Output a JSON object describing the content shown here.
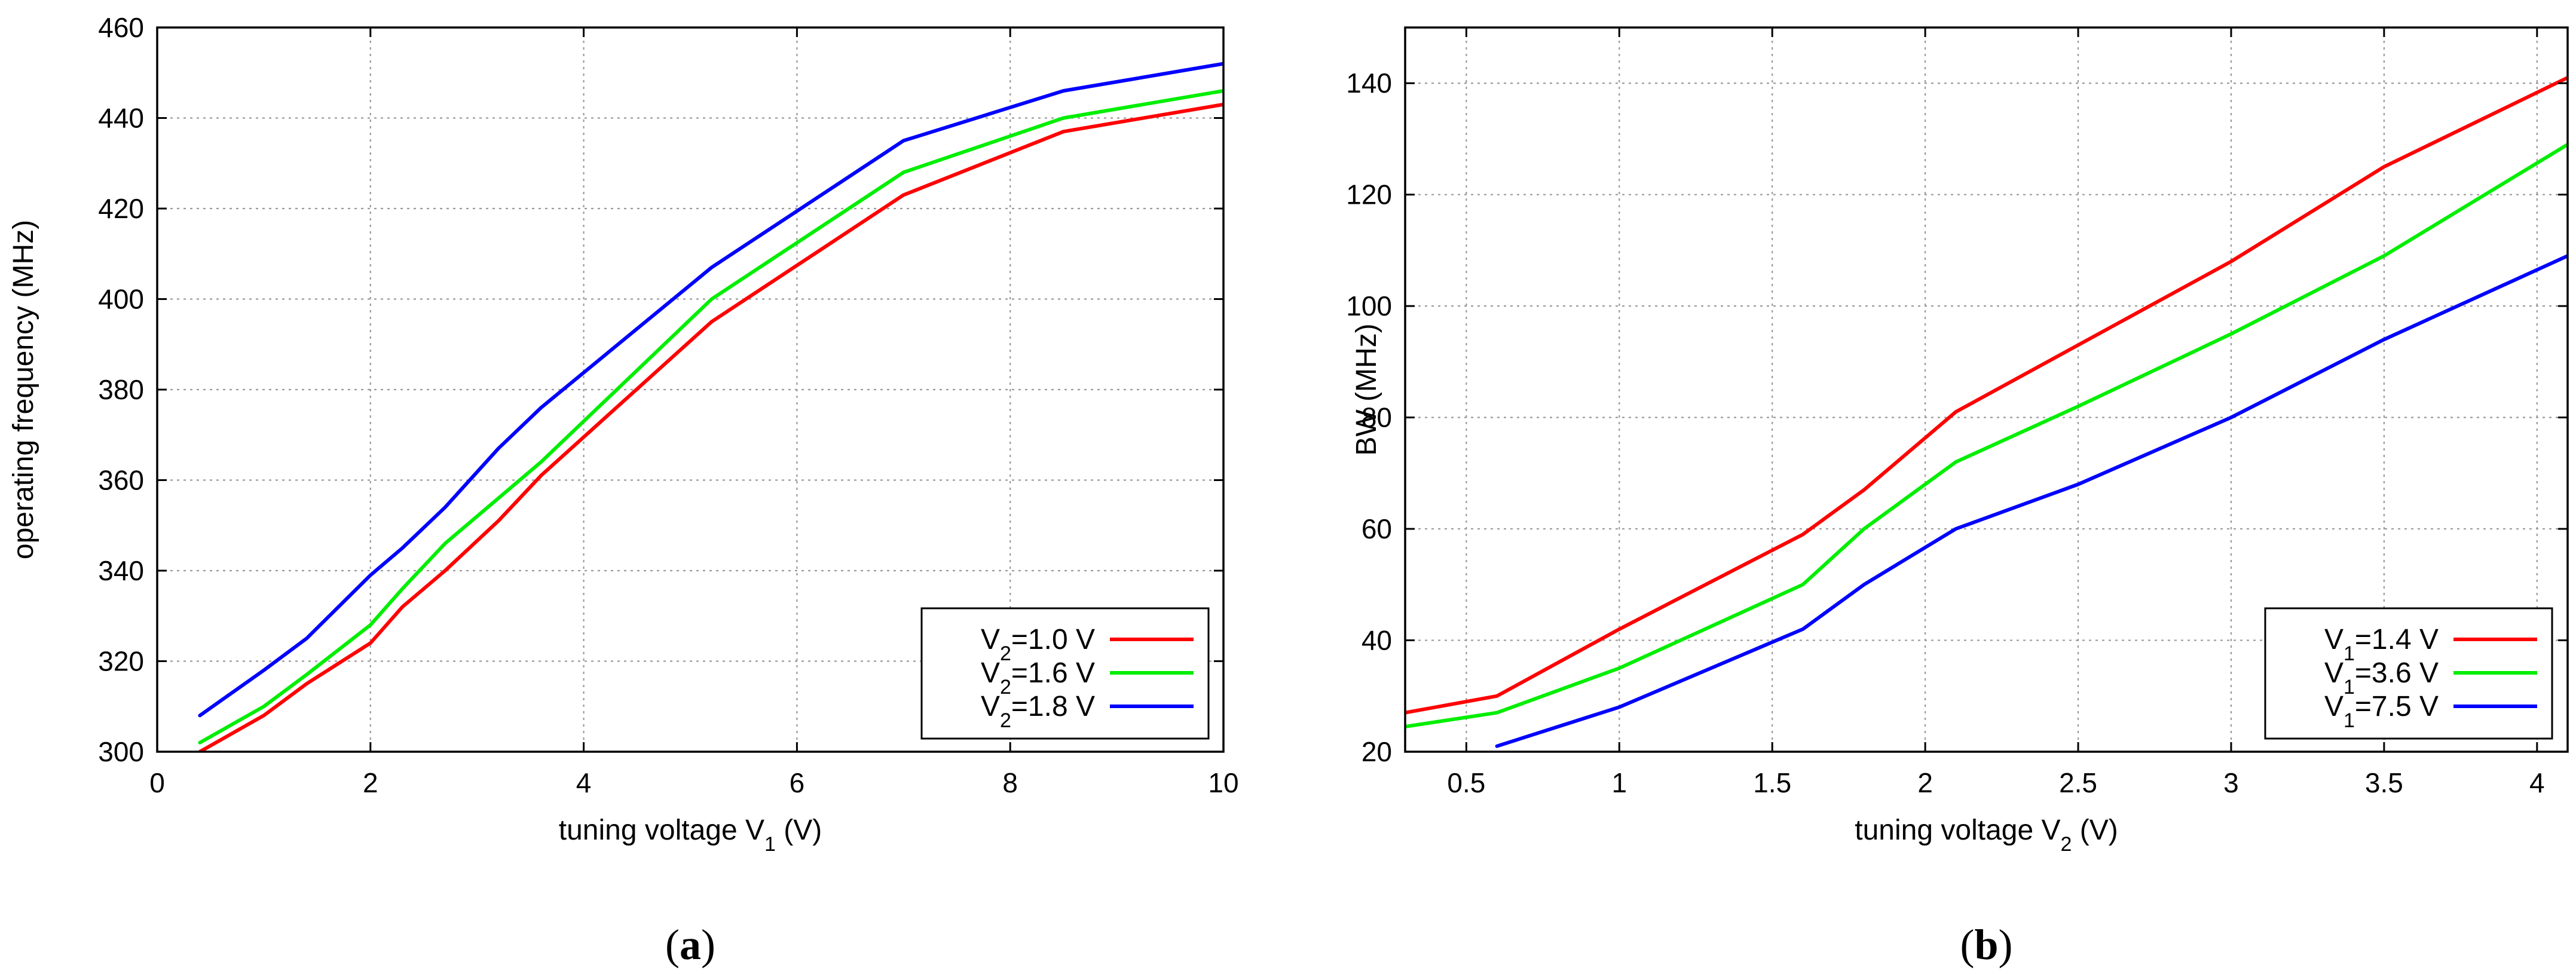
{
  "chart_data": [
    {
      "type": "line",
      "panel_label": "a",
      "xlabel_prefix": "tuning voltage V",
      "xlabel_sub": "1",
      "xlabel_suffix": " (V)",
      "ylabel": "operating frequency (MHz)",
      "xlim": [
        0,
        10
      ],
      "ylim": [
        300,
        460
      ],
      "xticks": [
        0,
        2,
        4,
        6,
        8,
        10
      ],
      "yticks": [
        300,
        320,
        340,
        360,
        380,
        400,
        420,
        440,
        460
      ],
      "grid": true,
      "legend_position": "bottom-right",
      "series": [
        {
          "name_prefix": "V",
          "name_sub": "2",
          "name_suffix": "=1.0 V",
          "color": "#ff0000",
          "x": [
            0.4,
            1.0,
            1.4,
            2.0,
            2.3,
            2.7,
            3.2,
            3.6,
            5.2,
            7.0,
            8.5,
            10.0
          ],
          "y": [
            300,
            308,
            315,
            324,
            332,
            340,
            351,
            361,
            395,
            423,
            437,
            443
          ]
        },
        {
          "name_prefix": "V",
          "name_sub": "2",
          "name_suffix": "=1.6 V",
          "color": "#00ee00",
          "x": [
            0.4,
            1.0,
            1.4,
            2.0,
            2.3,
            2.7,
            3.2,
            3.6,
            5.2,
            7.0,
            8.5,
            10.0
          ],
          "y": [
            302,
            310,
            317,
            328,
            336,
            346,
            356,
            364,
            400,
            428,
            440,
            446
          ]
        },
        {
          "name_prefix": "V",
          "name_sub": "2",
          "name_suffix": "=1.8 V",
          "color": "#0000ff",
          "x": [
            0.4,
            1.0,
            1.4,
            2.0,
            2.3,
            2.7,
            3.2,
            3.6,
            5.2,
            7.0,
            8.5,
            10.0
          ],
          "y": [
            308,
            318,
            325,
            339,
            345,
            354,
            367,
            376,
            407,
            435,
            446,
            452
          ]
        }
      ]
    },
    {
      "type": "line",
      "panel_label": "b",
      "xlabel_prefix": "tuning voltage V",
      "xlabel_sub": "2",
      "xlabel_suffix": " (V)",
      "ylabel": "BW (MHz)",
      "xlim": [
        0.3,
        4.1
      ],
      "ylim": [
        20,
        150
      ],
      "xticks": [
        0.5,
        1,
        1.5,
        2,
        2.5,
        3,
        3.5,
        4
      ],
      "yticks": [
        20,
        40,
        60,
        80,
        100,
        120,
        140
      ],
      "grid": true,
      "legend_position": "bottom-right",
      "series": [
        {
          "name_prefix": "V",
          "name_sub": "1",
          "name_suffix": "=1.4 V",
          "color": "#ff0000",
          "x": [
            0.3,
            0.6,
            1.0,
            1.6,
            1.8,
            2.1,
            2.5,
            3.0,
            3.5,
            4.1
          ],
          "y": [
            27,
            30,
            42,
            59,
            67,
            81,
            93,
            108,
            125,
            141
          ]
        },
        {
          "name_prefix": "V",
          "name_sub": "1",
          "name_suffix": "=3.6 V",
          "color": "#00ee00",
          "x": [
            0.3,
            0.6,
            1.0,
            1.6,
            1.8,
            2.1,
            2.5,
            3.0,
            3.5,
            4.1
          ],
          "y": [
            24.5,
            27,
            35,
            50,
            60,
            72,
            82,
            95,
            109,
            129
          ]
        },
        {
          "name_prefix": "V",
          "name_sub": "1",
          "name_suffix": "=7.5 V",
          "color": "#0000ff",
          "x": [
            0.6,
            1.0,
            1.6,
            1.8,
            2.1,
            2.5,
            3.0,
            3.5,
            4.1
          ],
          "y": [
            21,
            28,
            42,
            50,
            60,
            68,
            80,
            94,
            109
          ]
        }
      ]
    }
  ]
}
